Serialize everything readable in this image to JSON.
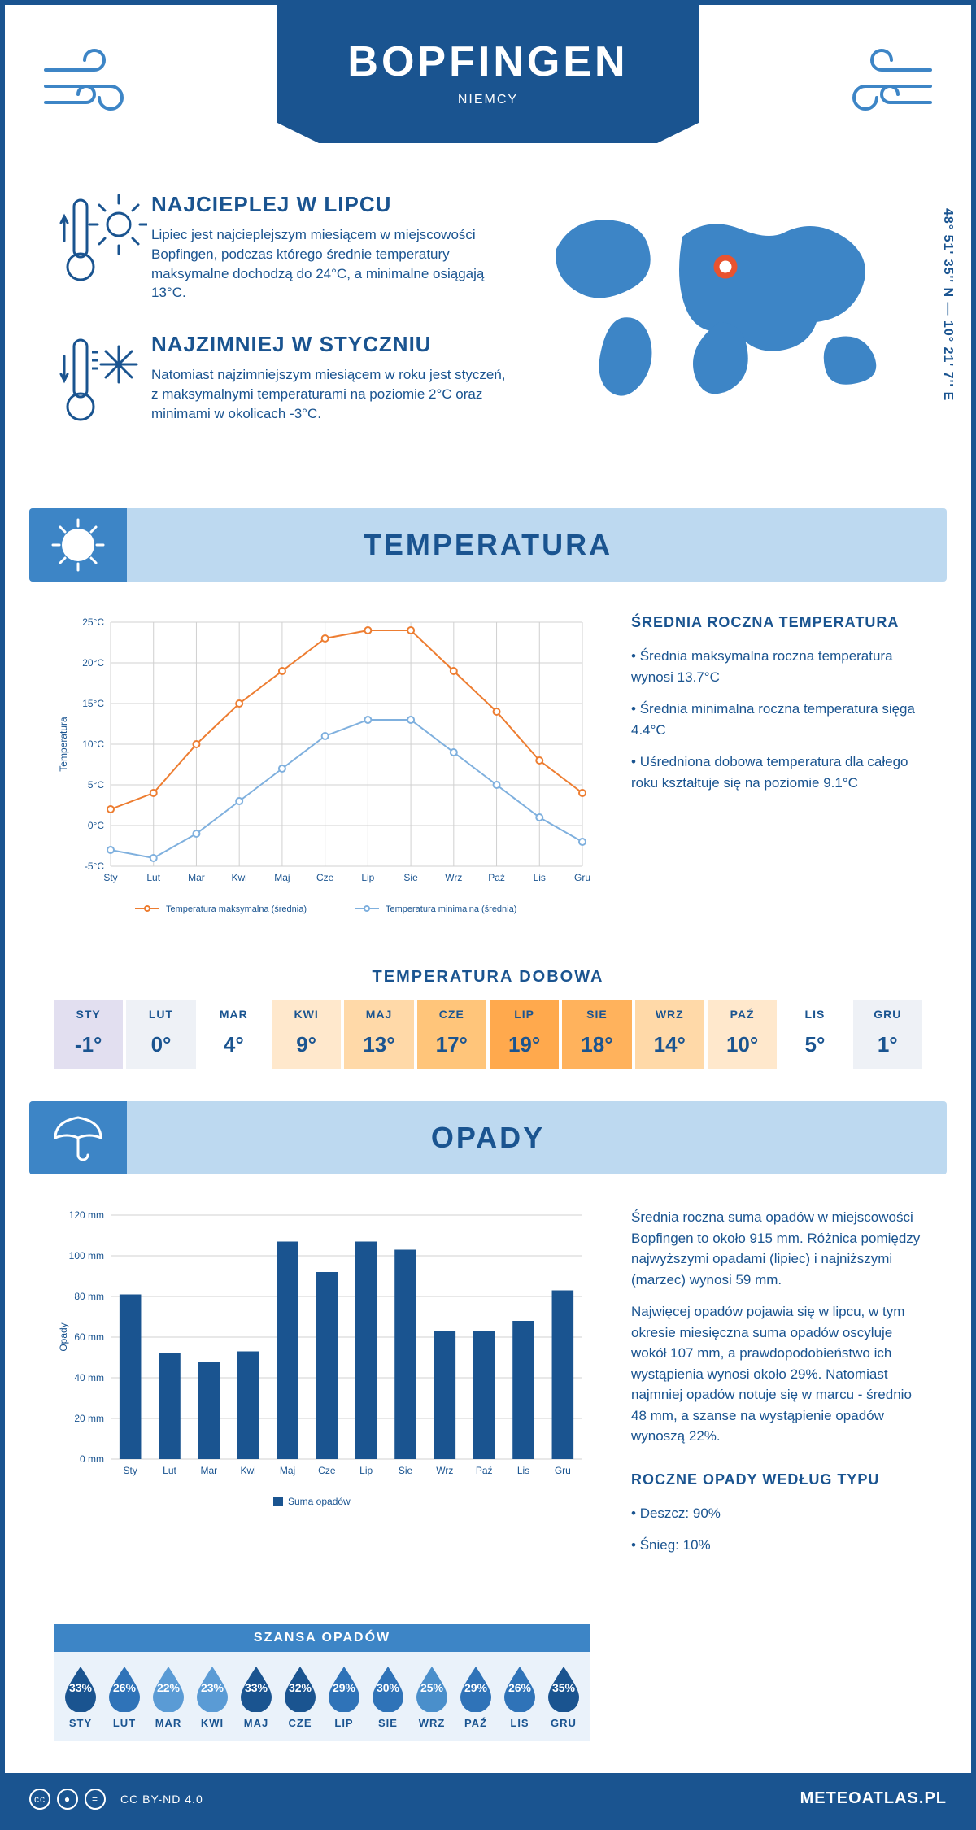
{
  "header": {
    "city": "BOPFINGEN",
    "country": "NIEMCY",
    "coords": "48° 51' 35'' N — 10° 21' 7'' E"
  },
  "colors": {
    "primary": "#1a5490",
    "light_blue": "#bdd9f0",
    "mid_blue": "#3d85c6",
    "orange": "#ed7d31",
    "series_blue": "#7fb0de",
    "bg": "#ffffff"
  },
  "warmest": {
    "title": "NAJCIEPLEJ W LIPCU",
    "text": "Lipiec jest najcieplejszym miesiącem w miejscowości Bopfingen, podczas którego średnie temperatury maksymalne dochodzą do 24°C, a minimalne osiągają 13°C."
  },
  "coldest": {
    "title": "NAJZIMNIEJ W STYCZNIU",
    "text": "Natomiast najzimniejszym miesiącem w roku jest styczeń, z maksymalnymi temperaturami na poziomie 2°C oraz minimami w okolicach -3°C."
  },
  "temperature_section": {
    "title": "TEMPERATURA",
    "annual_title": "ŚREDNIA ROCZNA TEMPERATURA",
    "bullets": [
      "Średnia maksymalna roczna temperatura wynosi 13.7°C",
      "Średnia minimalna roczna temperatura sięga 4.4°C",
      "Uśredniona dobowa temperatura dla całego roku kształtuje się na poziomie 9.1°C"
    ]
  },
  "temp_chart": {
    "type": "line",
    "months": [
      "Sty",
      "Lut",
      "Mar",
      "Kwi",
      "Maj",
      "Cze",
      "Lip",
      "Sie",
      "Wrz",
      "Paź",
      "Lis",
      "Gru"
    ],
    "ylabel": "Temperatura",
    "ylim": [
      -5,
      25
    ],
    "ytick_step": 5,
    "ytick_labels": [
      "-5°C",
      "0°C",
      "5°C",
      "10°C",
      "15°C",
      "20°C",
      "25°C"
    ],
    "max_series": {
      "label": "Temperatura maksymalna (średnia)",
      "color": "#ed7d31",
      "values": [
        2,
        4,
        10,
        15,
        19,
        23,
        24,
        24,
        19,
        14,
        8,
        4
      ]
    },
    "min_series": {
      "label": "Temperatura minimalna (średnia)",
      "color": "#7fb0de",
      "values": [
        -3,
        -4,
        -1,
        3,
        7,
        11,
        13,
        13,
        9,
        5,
        1,
        -2
      ]
    },
    "grid_color": "#d0d0d0",
    "line_width": 2,
    "marker": "circle"
  },
  "daily_temp": {
    "title": "TEMPERATURA DOBOWA",
    "months": [
      "STY",
      "LUT",
      "MAR",
      "KWI",
      "MAJ",
      "CZE",
      "LIP",
      "SIE",
      "WRZ",
      "PAŹ",
      "LIS",
      "GRU"
    ],
    "values": [
      "-1°",
      "0°",
      "4°",
      "9°",
      "13°",
      "17°",
      "19°",
      "18°",
      "14°",
      "10°",
      "5°",
      "1°"
    ],
    "bg_colors": [
      "#e2dff0",
      "#eef1f6",
      "#ffffff",
      "#ffe8cc",
      "#ffd9a8",
      "#ffc57a",
      "#ffa94d",
      "#ffb25c",
      "#ffd9a8",
      "#ffe8cc",
      "#ffffff",
      "#eef1f6"
    ]
  },
  "precip_section": {
    "title": "OPADY",
    "para1": "Średnia roczna suma opadów w miejscowości Bopfingen to około 915 mm. Różnica pomiędzy najwyższymi opadami (lipiec) i najniższymi (marzec) wynosi 59 mm.",
    "para2": "Najwięcej opadów pojawia się w lipcu, w tym okresie miesięczna suma opadów oscyluje wokół 107 mm, a prawdopodobieństwo ich wystąpienia wynosi około 29%. Natomiast najmniej opadów notuje się w marcu - średnio 48 mm, a szanse na wystąpienie opadów wynoszą 22%.",
    "type_title": "ROCZNE OPADY WEDŁUG TYPU",
    "type_bullets": [
      "Deszcz: 90%",
      "Śnieg: 10%"
    ]
  },
  "precip_chart": {
    "type": "bar",
    "months": [
      "Sty",
      "Lut",
      "Mar",
      "Kwi",
      "Maj",
      "Cze",
      "Lip",
      "Sie",
      "Wrz",
      "Paź",
      "Lis",
      "Gru"
    ],
    "values": [
      81,
      52,
      48,
      53,
      107,
      92,
      107,
      103,
      63,
      63,
      68,
      83
    ],
    "ylabel": "Opady",
    "ylim": [
      0,
      120
    ],
    "ytick_step": 20,
    "ytick_labels": [
      "0 mm",
      "20 mm",
      "40 mm",
      "60 mm",
      "80 mm",
      "100 mm",
      "120 mm"
    ],
    "bar_color": "#1a5490",
    "grid_color": "#d0d0d0",
    "legend": "Suma opadów",
    "bar_width": 0.55
  },
  "chance": {
    "title": "SZANSA OPADÓW",
    "months": [
      "STY",
      "LUT",
      "MAR",
      "KWI",
      "MAJ",
      "CZE",
      "LIP",
      "SIE",
      "WRZ",
      "PAŹ",
      "LIS",
      "GRU"
    ],
    "values": [
      "33%",
      "26%",
      "22%",
      "23%",
      "33%",
      "32%",
      "29%",
      "30%",
      "25%",
      "29%",
      "26%",
      "35%"
    ],
    "colors": [
      "#1a5490",
      "#2f73b8",
      "#5a9bd5",
      "#5a9bd5",
      "#1a5490",
      "#1a5490",
      "#2f73b8",
      "#2f73b8",
      "#4a8fcb",
      "#2f73b8",
      "#2f73b8",
      "#1a5490"
    ]
  },
  "footer": {
    "license": "CC BY-ND 4.0",
    "brand": "METEOATLAS.PL"
  }
}
